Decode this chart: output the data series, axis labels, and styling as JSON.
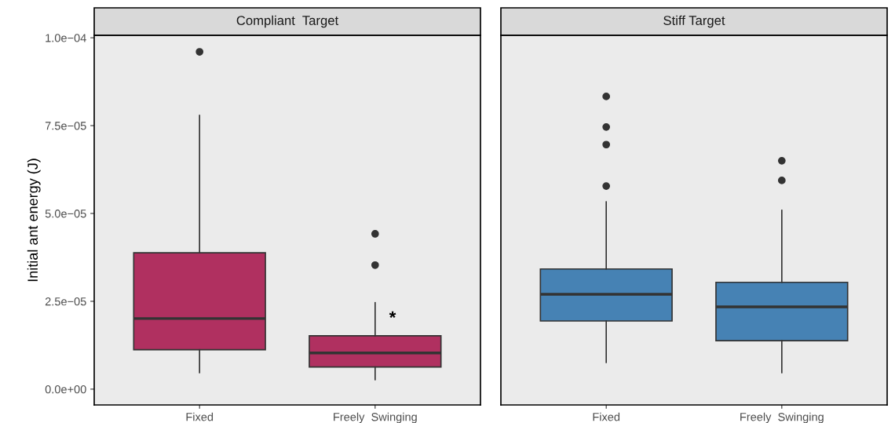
{
  "chart_data": [
    {
      "type": "box",
      "title": "Compliant  Target",
      "ylabel": "Initial ant energy (J)",
      "categories": [
        "Fixed",
        "Freely  Swinging"
      ],
      "color": "#b03060",
      "boxes": [
        {
          "low": 4.7e-06,
          "q1": 1.12e-05,
          "median": 2.01e-05,
          "q3": 3.88e-05,
          "high": 7.79e-05,
          "outliers": [
            9.6e-05
          ]
        },
        {
          "low": 2.7e-06,
          "q1": 6.3e-06,
          "median": 1.03e-05,
          "q3": 1.52e-05,
          "high": 2.46e-05,
          "outliers": [
            3.53e-05,
            4.42e-05
          ]
        }
      ],
      "ylim": [
        -4.5e-06,
        0.0001007
      ],
      "yticks": [
        {
          "value": 0,
          "label": "0.0e+00"
        },
        {
          "value": 2.5e-05,
          "label": "2.5e−05"
        },
        {
          "value": 5e-05,
          "label": "5.0e−05"
        },
        {
          "value": 7.5e-05,
          "label": "7.5e−05"
        },
        {
          "value": 0.0001,
          "label": "1.0e−04"
        }
      ],
      "annotations": [
        {
          "text": "*",
          "x": "Freely  Swinging",
          "y": 2e-05
        }
      ],
      "grid": false
    },
    {
      "type": "box",
      "title": "Stiff Target",
      "categories": [
        "Fixed",
        "Freely  Swinging"
      ],
      "color": "#4682b4",
      "boxes": [
        {
          "low": 7.6e-06,
          "q1": 1.94e-05,
          "median": 2.7e-05,
          "q3": 3.42e-05,
          "high": 5.33e-05,
          "outliers": [
            5.78e-05,
            6.96e-05,
            7.46e-05,
            8.33e-05
          ]
        },
        {
          "low": 4.7e-06,
          "q1": 1.38e-05,
          "median": 2.34e-05,
          "q3": 3.04e-05,
          "high": 5.09e-05,
          "outliers": [
            5.94e-05,
            6.5e-05
          ]
        }
      ],
      "ylim": [
        -4.5e-06,
        0.0001007
      ],
      "tick_labels": "x",
      "grid": false
    }
  ]
}
